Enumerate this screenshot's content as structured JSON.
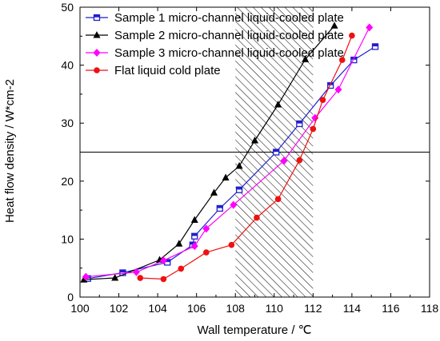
{
  "chart_data": {
    "type": "line",
    "xlabel": "Wall temperature / ℃",
    "ylabel": "Heat flow density / W*cm-2",
    "xlim": [
      100,
      118
    ],
    "ylim": [
      0,
      50
    ],
    "x_ticks": [
      100,
      102,
      104,
      106,
      108,
      110,
      112,
      114,
      116,
      118
    ],
    "y_ticks": [
      0,
      10,
      20,
      30,
      40,
      50
    ],
    "reference_line_y": 25,
    "shaded_region_x": [
      108,
      112
    ],
    "legend_position": "top-left",
    "series": [
      {
        "name": "Sample 1 micro-channel liquid-cooled plate",
        "color": "#1f1fd0",
        "marker": "half-filled-square",
        "x": [
          100.4,
          102.2,
          104.5,
          105.8,
          105.9,
          107.2,
          108.2,
          110.1,
          111.3,
          112.9,
          114.1,
          115.2
        ],
        "y": [
          3.2,
          4.2,
          6.0,
          9.0,
          10.5,
          15.3,
          18.5,
          25.0,
          29.9,
          36.5,
          40.9,
          43.2
        ]
      },
      {
        "name": "Sample 2 micro-channel liquid-cooled plate",
        "color": "#000000",
        "marker": "triangle",
        "x": [
          100.2,
          101.8,
          104.1,
          105.1,
          105.9,
          106.9,
          107.5,
          108.2,
          109.0,
          110.2,
          111.6,
          113.1
        ],
        "y": [
          3.0,
          3.3,
          6.4,
          9.2,
          13.3,
          18.0,
          20.6,
          22.6,
          27.0,
          33.2,
          41.0,
          46.8
        ]
      },
      {
        "name": "Sample 3 micro-channel liquid-cooled plate",
        "color": "#ff00ff",
        "marker": "diamond",
        "x": [
          100.3,
          102.9,
          104.3,
          105.9,
          106.5,
          107.9,
          110.5,
          112.1,
          113.3,
          114.9
        ],
        "y": [
          3.5,
          4.3,
          6.3,
          8.8,
          11.8,
          15.9,
          23.5,
          30.9,
          35.8,
          46.5
        ]
      },
      {
        "name": "Flat liquid cold plate",
        "color": "#ee1111",
        "marker": "circle",
        "x": [
          103.1,
          104.3,
          105.2,
          106.5,
          107.8,
          109.1,
          110.2,
          111.3,
          112.0,
          112.5,
          113.5,
          114.0
        ],
        "y": [
          3.3,
          3.1,
          4.9,
          7.7,
          9.0,
          13.7,
          16.9,
          23.6,
          29.0,
          34.0,
          40.9,
          45.1
        ]
      }
    ]
  }
}
